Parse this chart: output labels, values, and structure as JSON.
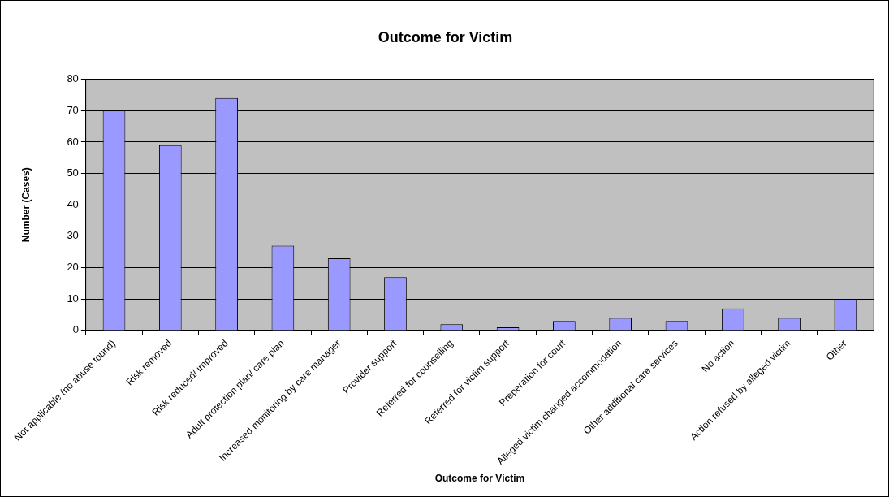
{
  "chart_data": {
    "type": "bar",
    "title": "Outcome for Victim",
    "xlabel": "Outcome for Victim",
    "ylabel": "Number (Cases)",
    "categories": [
      "Not applicable (no abuse found)",
      "Risk removed",
      "Risk reduced/ improved",
      "Adult protection plan/ care plan",
      "Increased monitoring by care manager",
      "Provider support",
      "Referred for counselling",
      "Referred for victim support",
      "Preperation for court",
      "Alleged victim changed accommodation",
      "Other additional care services",
      "No action",
      "Action refused by alleged victim",
      "Other"
    ],
    "values": [
      70,
      59,
      74,
      27,
      23,
      17,
      2,
      1,
      3,
      4,
      3,
      7,
      4,
      10
    ],
    "color": "#9999ff",
    "ylim": [
      0,
      80
    ],
    "yticks": [
      0,
      10,
      20,
      30,
      40,
      50,
      60,
      70,
      80
    ],
    "grid": "y",
    "legend": false
  }
}
